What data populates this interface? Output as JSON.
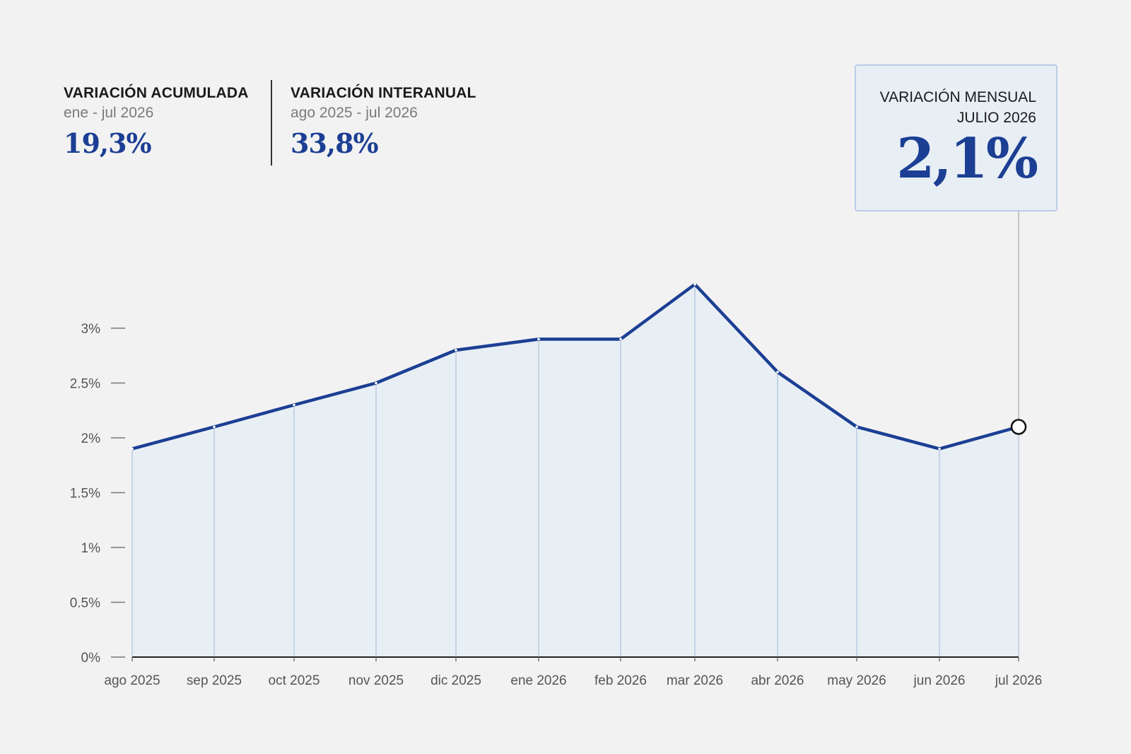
{
  "stats": {
    "acumulada": {
      "title": "VARIACIÓN ACUMULADA",
      "period": "ene - jul 2026",
      "value": "19,3%"
    },
    "interanual": {
      "title": "VARIACIÓN INTERANUAL",
      "period": "ago 2025 - jul 2026",
      "value": "33,8%"
    },
    "mensual": {
      "title_line1": "VARIACIÓN MENSUAL",
      "title_line2": "JULIO 2026",
      "value": "2,1%"
    }
  },
  "colors": {
    "line": "#1c3f94",
    "area": "#e8eff4",
    "gridline": "#b9cbe2",
    "highlight_marker": "#111111"
  },
  "chart_data": {
    "type": "area",
    "categories": [
      "ago 2025",
      "sep 2025",
      "oct 2025",
      "nov 2025",
      "dic 2025",
      "ene 2026",
      "feb 2026",
      "mar 2026",
      "abr 2026",
      "may 2026",
      "jun 2026",
      "jul 2026"
    ],
    "values": [
      1.9,
      2.1,
      2.3,
      2.5,
      2.8,
      2.9,
      2.9,
      3.4,
      2.6,
      2.1,
      1.9,
      2.1
    ],
    "y_ticks": [
      0,
      0.5,
      1,
      1.5,
      2,
      2.5,
      3
    ],
    "y_tick_labels": [
      "0%",
      "0.5%",
      "1%",
      "1.5%",
      "2%",
      "2.5%",
      "3%"
    ],
    "ylim": [
      0,
      3.4
    ],
    "highlight_category": "jul 2026",
    "grid": "vertical lines at each month",
    "legend": "none"
  }
}
